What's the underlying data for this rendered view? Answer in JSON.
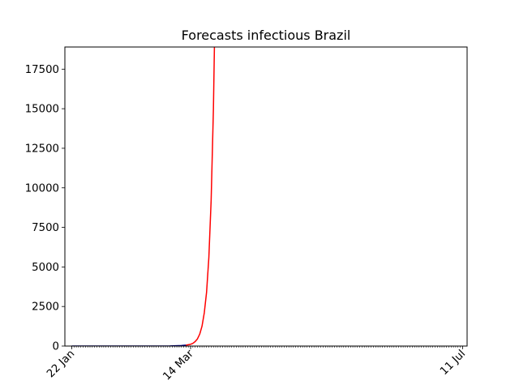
{
  "chart_data": {
    "type": "line",
    "title": "Forecasts infectious Brazil",
    "xlabel": "",
    "ylabel": "",
    "x_axis": {
      "type": "date",
      "range": [
        "2020-01-19",
        "2020-07-13"
      ],
      "tick_labels": [
        {
          "date": "2020-01-22",
          "label": "22 Jan"
        },
        {
          "date": "2020-03-14",
          "label": "14 Mar"
        },
        {
          "date": "2020-07-11",
          "label": "11 Jul"
        }
      ],
      "minor_tick_start": "2020-01-22",
      "minor_tick_end": "2020-07-11"
    },
    "ylim": [
      0,
      18900
    ],
    "yticks": [
      0,
      2500,
      5000,
      7500,
      10000,
      12500,
      15000,
      17500
    ],
    "grid": false,
    "series": [
      {
        "role": "observed",
        "color": "#00008b",
        "points": [
          {
            "x": "2020-01-22",
            "y": 0
          },
          {
            "x": "2020-02-10",
            "y": 0
          },
          {
            "x": "2020-02-25",
            "y": 1
          },
          {
            "x": "2020-03-05",
            "y": 8
          },
          {
            "x": "2020-03-10",
            "y": 30
          },
          {
            "x": "2020-03-12",
            "y": 60
          }
        ]
      },
      {
        "role": "forecast",
        "color": "#ff0000",
        "points": [
          {
            "x": "2020-03-12",
            "y": 60
          },
          {
            "x": "2020-03-14",
            "y": 110
          },
          {
            "x": "2020-03-15",
            "y": 170
          },
          {
            "x": "2020-03-16",
            "y": 280
          },
          {
            "x": "2020-03-17",
            "y": 450
          },
          {
            "x": "2020-03-18",
            "y": 750
          },
          {
            "x": "2020-03-19",
            "y": 1250
          },
          {
            "x": "2020-03-20",
            "y": 2100
          },
          {
            "x": "2020-03-21",
            "y": 3400
          },
          {
            "x": "2020-03-22",
            "y": 5600
          },
          {
            "x": "2020-03-23",
            "y": 9200
          },
          {
            "x": "2020-03-24",
            "y": 15000
          },
          {
            "x": "2020-03-25",
            "y": 24000
          }
        ]
      }
    ]
  }
}
